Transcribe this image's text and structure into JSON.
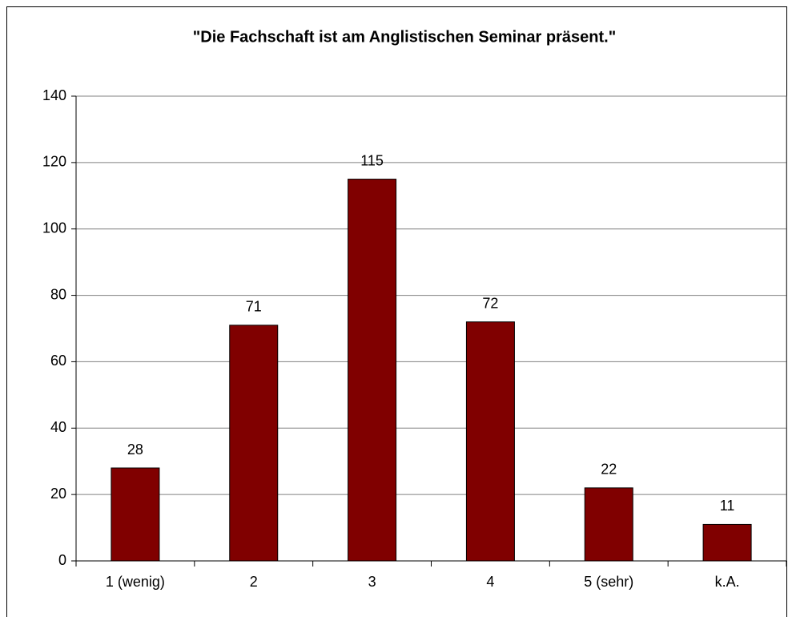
{
  "chart_data": {
    "type": "bar",
    "title": "\"Die Fachschaft ist am Anglistischen Seminar präsent.\"",
    "categories": [
      "1 (wenig)",
      "2",
      "3",
      "4",
      "5 (sehr)",
      "k.A."
    ],
    "values": [
      28,
      71,
      115,
      72,
      22,
      11
    ],
    "color": "#800000",
    "ylim": [
      0,
      140
    ],
    "yticks": [
      0,
      20,
      40,
      60,
      80,
      100,
      120,
      140
    ],
    "grid": true
  }
}
